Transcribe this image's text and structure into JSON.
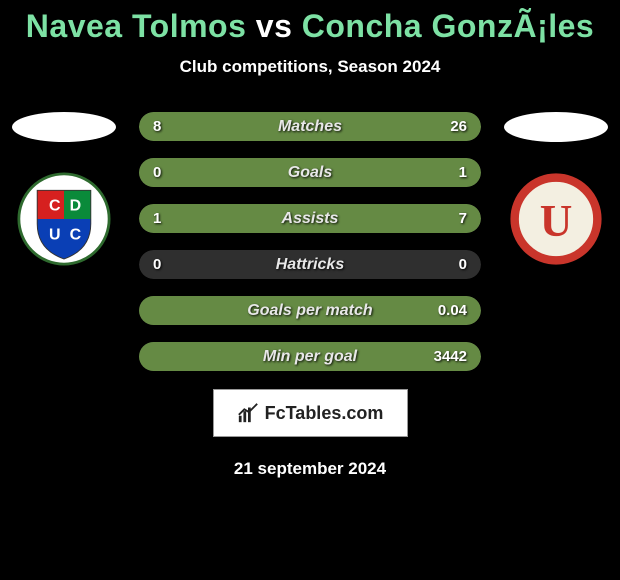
{
  "title": {
    "player1": "Navea Tolmos",
    "vs": "vs",
    "player2": "Concha GonzÃ¡les",
    "color_players": "#7de1a4",
    "color_vs": "#ffffff",
    "fontsize": 32
  },
  "subtitle": "Club competitions, Season 2024",
  "colors": {
    "background": "#000000",
    "track": "#2f2f2f",
    "fill": "#658a44",
    "text_white": "#ffffff",
    "label_grey": "#e8e8e8"
  },
  "bar": {
    "height": 29,
    "radius": 15,
    "fontsize_label": 16,
    "fontsize_value": 15
  },
  "stats": [
    {
      "label": "Matches",
      "left_val": "8",
      "right_val": "26",
      "left_pct": 24,
      "right_pct": 76
    },
    {
      "label": "Goals",
      "left_val": "0",
      "right_val": "1",
      "left_pct": 0,
      "right_pct": 100
    },
    {
      "label": "Assists",
      "left_val": "1",
      "right_val": "7",
      "left_pct": 13,
      "right_pct": 87
    },
    {
      "label": "Hattricks",
      "left_val": "0",
      "right_val": "0",
      "left_pct": 0,
      "right_pct": 0
    },
    {
      "label": "Goals per match",
      "left_val": "",
      "right_val": "0.04",
      "left_pct": 0,
      "right_pct": 100
    },
    {
      "label": "Min per goal",
      "left_val": "",
      "right_val": "3442",
      "left_pct": 0,
      "right_pct": 100
    }
  ],
  "club_left": {
    "name": "CDUC",
    "colors": {
      "red": "#d6201f",
      "green": "#0a8a3a",
      "blue": "#0a3fb5",
      "white": "#ffffff",
      "border": "#2e6a2e"
    }
  },
  "club_right": {
    "name": "U",
    "colors": {
      "ring": "#c9352b",
      "cream": "#f3efe1",
      "white": "#ffffff"
    }
  },
  "branding": "FcTables.com",
  "date": "21 september 2024"
}
